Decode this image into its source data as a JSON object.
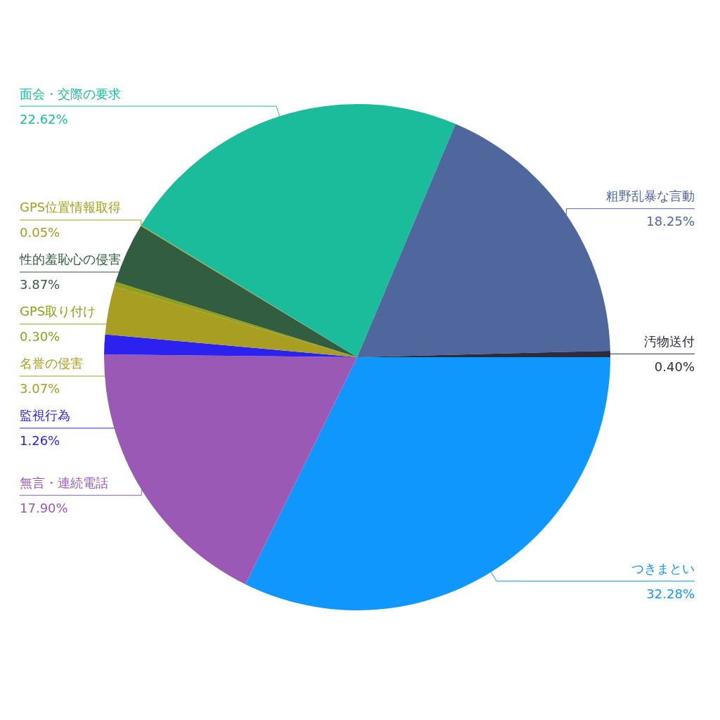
{
  "chart_data": {
    "type": "pie",
    "categories": [
      "つきまとい",
      "無言・連続電話",
      "監視行為",
      "名誉の侵害",
      "GPS取り付け",
      "性的羞恥心の侵害",
      "GPS位置情報取得",
      "面会・交際の要求",
      "粗野乱暴な言動",
      "汚物送付"
    ],
    "values": [
      32.28,
      17.9,
      1.26,
      3.07,
      0.3,
      3.87,
      0.05,
      22.62,
      18.25,
      0.4
    ],
    "value_labels": [
      "32.28%",
      "17.90%",
      "1.26%",
      "3.07%",
      "0.30%",
      "3.87%",
      "0.05%",
      "22.62%",
      "18.25%",
      "0.40%"
    ],
    "colors": [
      "#0f97fd",
      "#9a59b5",
      "#2b22f0",
      "#a89e22",
      "#8fa01c",
      "#335d40",
      "#a0a020",
      "#1abc9c",
      "#50679d",
      "#2c2c40"
    ],
    "legend": false
  }
}
